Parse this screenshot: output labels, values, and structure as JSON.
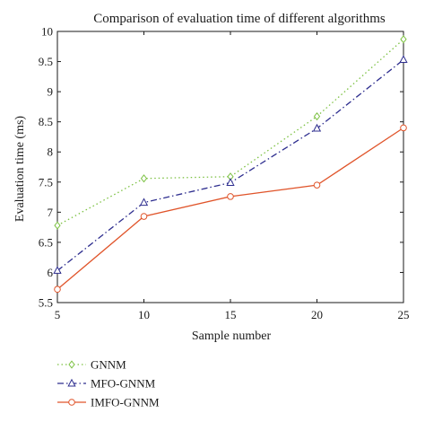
{
  "chart_data": {
    "type": "line",
    "title": "Comparison of evaluation time of different algorithms",
    "xlabel": "Sample number",
    "ylabel": "Evaluation time (ms)",
    "xlim": [
      5,
      25
    ],
    "ylim": [
      5.5,
      10
    ],
    "xticks": [
      "5",
      "10",
      "15",
      "20",
      "25"
    ],
    "yticks": [
      "5.5",
      "6",
      "6.5",
      "7",
      "7.5",
      "8",
      "8.5",
      "9",
      "9.5",
      "10"
    ],
    "grid": false,
    "legend_position": "bottom-left, below plot",
    "x": [
      5,
      10,
      15,
      20,
      25
    ],
    "series": [
      {
        "name": "GNNM",
        "values": [
          6.78,
          7.56,
          7.59,
          8.59,
          9.87
        ],
        "color": "#7cc142",
        "line_style": "dotted",
        "marker": "diamond"
      },
      {
        "name": "MFO-GNNM",
        "values": [
          6.03,
          7.16,
          7.49,
          8.39,
          9.53
        ],
        "color": "#2e2e8f",
        "line_style": "dash-dot",
        "marker": "triangle"
      },
      {
        "name": "IMFO-GNNM",
        "values": [
          5.72,
          6.93,
          7.26,
          7.45,
          8.4
        ],
        "color": "#e0542a",
        "line_style": "solid",
        "marker": "circle"
      }
    ]
  }
}
